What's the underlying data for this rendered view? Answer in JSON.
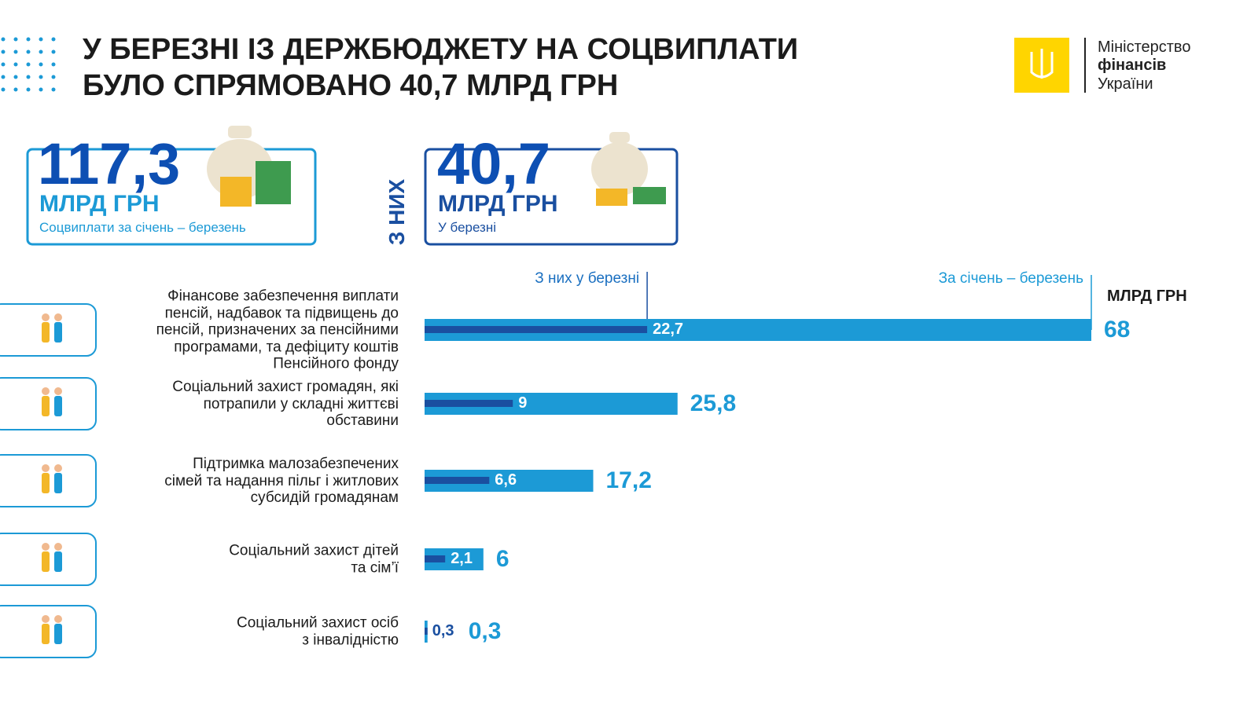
{
  "header": {
    "title": "У БЕРЕЗНІ ІЗ ДЕРЖБЮДЖЕТУ НА СОЦВИПЛАТИ\nБУЛО СПРЯМОВАНО 40,7 МЛРД ГРН",
    "logo": [
      "Міністерство",
      "фінансів",
      "України"
    ]
  },
  "summary": {
    "total": {
      "value": "117,3",
      "unit": "МЛРД ГРН",
      "caption": "Соцвиплати за січень – березень"
    },
    "connector": "З НИХ",
    "march": {
      "value": "40,7",
      "unit": "МЛРД ГРН",
      "caption": "У березні"
    }
  },
  "chart_data": {
    "type": "bar",
    "orientation": "horizontal",
    "unit": "МЛРД ГРН",
    "categories": [
      "Фінансове забезпечення виплати\nпенсій, надбавок та підвищень до\nпенсій, призначених за пенсійними\nпрограмами, та дефіциту коштів\nПенсійного фонду",
      "Соціальний захист громадян, які\nпотрапили у складні життєві\nобставини",
      "Підтримка малозабезпечених\nсімей та надання пільг і житлових\nсубсидій громадянам",
      "Соціальний захист дітей\nта сім’ї",
      "Соціальний захист осіб\nз інвалідністю"
    ],
    "series": [
      {
        "name": "З них у березні",
        "color": "#1a4fa0",
        "values": [
          22.7,
          9,
          6.6,
          2.1,
          0.3
        ],
        "value_labels": [
          "22,7",
          "9",
          "6,6",
          "2,1",
          "0,3"
        ]
      },
      {
        "name": "За січень – березень",
        "color": "#1c9ad6",
        "values": [
          68,
          25.8,
          17.2,
          6,
          0.3
        ],
        "value_labels": [
          "68",
          "25,8",
          "17,2",
          "6",
          "0,3"
        ]
      }
    ]
  }
}
